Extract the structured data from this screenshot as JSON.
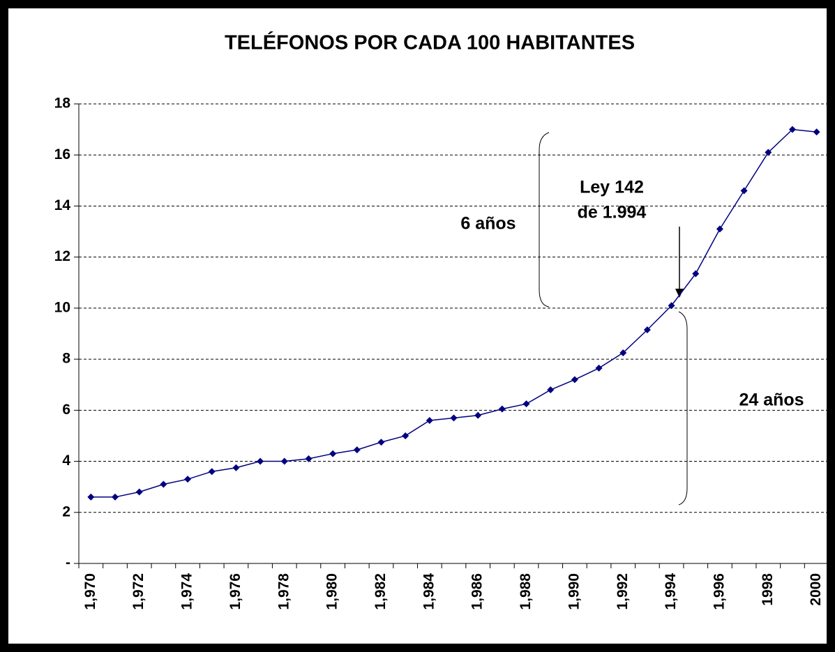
{
  "chart_data": {
    "type": "line",
    "title": "TELÉFONOS POR CADA 100 HABITANTES",
    "categories": [
      "1,970",
      null,
      "1,972",
      null,
      "1,974",
      null,
      "1,976",
      null,
      "1,978",
      null,
      "1,980",
      null,
      "1,982",
      null,
      "1,984",
      null,
      "1,986",
      null,
      "1,988",
      null,
      "1,990",
      null,
      "1,992",
      null,
      "1,994",
      null,
      "1,996",
      null,
      "1998",
      null,
      "2000"
    ],
    "series": [
      {
        "color": "#000080",
        "values": [
          2.6,
          2.6,
          2.8,
          3.1,
          3.3,
          3.6,
          3.75,
          4.0,
          4.0,
          4.1,
          4.3,
          4.45,
          4.75,
          5.0,
          5.6,
          5.7,
          5.8,
          6.05,
          6.25,
          6.8,
          7.2,
          7.65,
          8.25,
          9.15,
          10.1,
          11.35,
          13.1,
          14.6,
          16.1,
          17.0,
          16.9
        ]
      }
    ],
    "ylim": [
      0,
      18
    ],
    "yticks": [
      {
        "value": 0,
        "label": "-"
      },
      2,
      4,
      6,
      8,
      10,
      12,
      14,
      16,
      18
    ],
    "grid": true,
    "annotations": [
      "Ley 142",
      "de 1.994",
      "6 años",
      "24 años"
    ]
  }
}
